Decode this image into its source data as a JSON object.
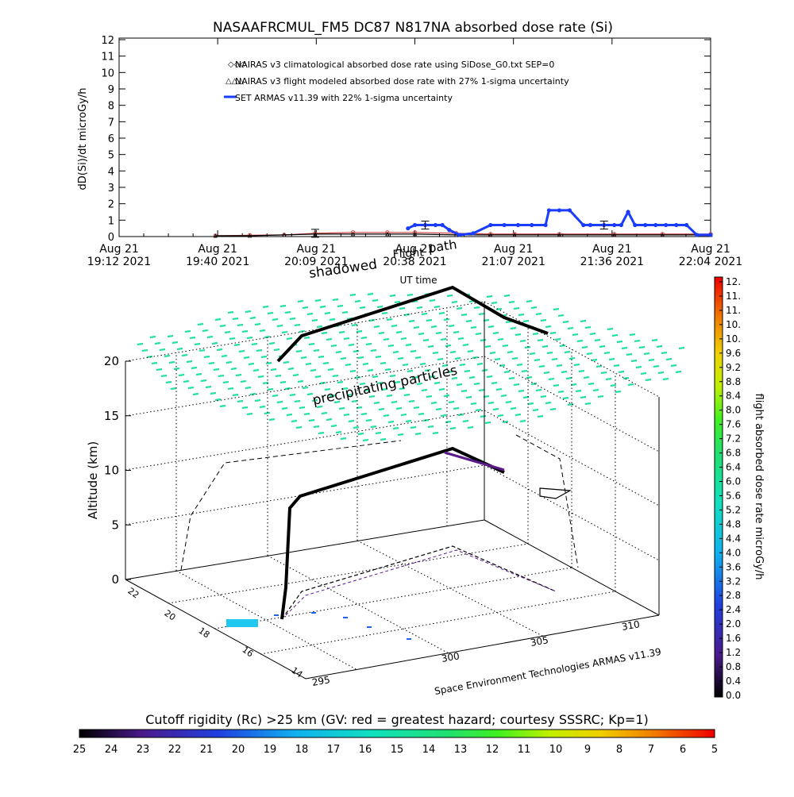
{
  "title": "NASAAFRCMUL_FM5 DC87 N817NA absorbed dose rate (Si)",
  "top_plot": {
    "ylabel": "dD(Si)/dt microGy/h",
    "xlabel": "UT time",
    "yticks": [
      "0",
      "1",
      "2",
      "3",
      "4",
      "5",
      "6",
      "7",
      "8",
      "9",
      "10",
      "11",
      "12"
    ],
    "xticks": [
      {
        "line1": "Aug 21",
        "line2": "19:12 2021"
      },
      {
        "line1": "Aug 21",
        "line2": "19:40 2021"
      },
      {
        "line1": "Aug 21",
        "line2": "20:09 2021"
      },
      {
        "line1": "Aug 21",
        "line2": "20:38 2021"
      },
      {
        "line1": "Aug 21",
        "line2": "21:07 2021"
      },
      {
        "line1": "Aug 21",
        "line2": "21:36 2021"
      },
      {
        "line1": "Aug 21",
        "line2": "22:04 2021"
      }
    ],
    "legend": [
      {
        "text": "NAIRAS v3 climatological absorbed dose rate using SiDose_G0.txt SEP=0",
        "color": "#cc4444",
        "marker": "x"
      },
      {
        "text": "NAIRAS v3 flight modeled absorbed dose rate with 27% 1-sigma uncertainty",
        "color": "#000000",
        "marker": "triangle"
      },
      {
        "text": "SET ARMAS v11.39 with 22% 1-sigma uncertainty",
        "color": "#1a3cff",
        "marker": "dot"
      }
    ],
    "overlay": {
      "shadowed": "shadowed",
      "path": "path",
      "flight": "Flight"
    }
  },
  "chart_data": {
    "type": "line",
    "title": "NASAAFRCMUL_FM5 DC87 N817NA absorbed dose rate (Si)",
    "xlabel": "UT time",
    "ylabel": "dD(Si)/dt microGy/h",
    "ylim": [
      0,
      12
    ],
    "x_range": [
      "19:12",
      "22:04"
    ],
    "series": [
      {
        "name": "NAIRAS v3 climatological absorbed dose rate using SiDose_G0.txt SEP=0",
        "x": [
          "19:40",
          "19:50",
          "20:00",
          "20:09",
          "20:20",
          "20:30",
          "20:38",
          "20:50",
          "21:00",
          "21:07",
          "21:20",
          "21:36",
          "21:50",
          "22:04"
        ],
        "y": [
          0.05,
          0.08,
          0.1,
          0.2,
          0.25,
          0.25,
          0.25,
          0.2,
          0.15,
          0.15,
          0.15,
          0.15,
          0.15,
          0.15
        ]
      },
      {
        "name": "NAIRAS v3 flight modeled absorbed dose rate with 27% 1-sigma uncertainty",
        "x": [
          "19:40",
          "19:50",
          "20:00",
          "20:09",
          "20:20",
          "20:30",
          "20:38",
          "20:50",
          "21:00",
          "21:07",
          "21:20",
          "21:36",
          "21:50",
          "22:04"
        ],
        "y": [
          0.05,
          0.05,
          0.1,
          0.15,
          0.15,
          0.15,
          0.15,
          0.1,
          0.1,
          0.1,
          0.1,
          0.1,
          0.1,
          0.1
        ]
      },
      {
        "name": "SET ARMAS v11.39 with 22% 1-sigma uncertainty",
        "x": [
          "20:36",
          "20:38",
          "20:41",
          "20:44",
          "20:46",
          "20:48",
          "20:51",
          "20:55",
          "21:00",
          "21:04",
          "21:08",
          "21:12",
          "21:16",
          "21:17",
          "21:20",
          "21:23",
          "21:27",
          "21:29",
          "21:33",
          "21:36",
          "21:38",
          "21:40",
          "21:42",
          "21:45",
          "21:48",
          "21:51",
          "21:54",
          "21:57",
          "22:00",
          "22:04"
        ],
        "y": [
          0.5,
          0.7,
          0.7,
          0.7,
          0.7,
          0.4,
          0.1,
          0.2,
          0.7,
          0.7,
          0.7,
          0.7,
          0.7,
          1.6,
          1.6,
          1.6,
          0.7,
          0.7,
          0.7,
          0.7,
          0.7,
          1.5,
          0.7,
          0.7,
          0.7,
          0.7,
          0.7,
          0.7,
          0.1,
          0.1
        ]
      }
    ]
  },
  "plot3d": {
    "zlabel": "Altitude (km)",
    "zticks": [
      "0",
      "5",
      "10",
      "15",
      "20"
    ],
    "xticks": [
      "295",
      "300",
      "305",
      "310"
    ],
    "yticks": [
      "22",
      "20",
      "18",
      "16",
      "14"
    ],
    "annotation": "precipitating particles",
    "credit": "Space Environment Technologies ARMAS v11.39"
  },
  "colorbar_right": {
    "label": "flight absorbed dose rate microGy/h",
    "ticks": [
      "12.",
      "11.",
      "11.",
      "10.",
      "10.",
      "9.6",
      "9.2",
      "8.8",
      "8.4",
      "8.0",
      "7.6",
      "7.2",
      "6.8",
      "6.4",
      "6.0",
      "5.6",
      "5.2",
      "4.8",
      "4.4",
      "4.0",
      "3.6",
      "3.2",
      "2.8",
      "2.4",
      "2.0",
      "1.6",
      "1.2",
      "0.8",
      "0.4",
      "0.0"
    ]
  },
  "colorbar_bottom": {
    "label": "Cutoff rigidity (Rc) >25 km (GV: red = greatest hazard; courtesy SSSRC; Kp=1)",
    "ticks": [
      "25",
      "24",
      "23",
      "22",
      "21",
      "20",
      "19",
      "18",
      "17",
      "16",
      "15",
      "14",
      "13",
      "12",
      "11",
      "10",
      "9",
      "8",
      "7",
      "6",
      "5"
    ]
  },
  "colors": {
    "sidose": "#cc4444",
    "armas": "#1a3cff",
    "model": "#000000",
    "cloud": "#22e0a0",
    "purple": "#5a1a8a"
  }
}
